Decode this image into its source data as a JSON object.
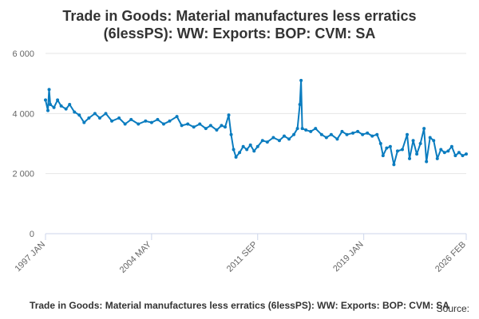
{
  "chart_data": {
    "type": "line",
    "title_line1": "Trade in Goods: Material manufactures less erratics",
    "title_line2": "(6lessPS): WW: Exports: BOP: CVM: SA",
    "xlabel": "",
    "ylabel": "",
    "ylim": [
      0,
      6000
    ],
    "yticks": [
      0,
      2000,
      4000,
      6000
    ],
    "ytick_labels": [
      "0",
      "2 000",
      "4 000",
      "6 000"
    ],
    "xtick_labels": [
      "1997 JAN",
      "2004 MAY",
      "2011 SEP",
      "2019 JAN",
      "2026 FEB"
    ],
    "xtick_dates": [
      "1997-01",
      "2004-05",
      "2011-09",
      "2019-01",
      "2026-02"
    ],
    "x_range": [
      "1997-01",
      "2026-02"
    ],
    "grid": true,
    "color": "#0a7cbf",
    "series": [
      {
        "name": "Trade in Goods: Material manufactures less erratics (6lessPS): WW: Exports: BOP: CVM: SA",
        "points": [
          [
            "1997-01",
            4450
          ],
          [
            "1997-03",
            4100
          ],
          [
            "1997-04",
            4800
          ],
          [
            "1997-05",
            4300
          ],
          [
            "1997-08",
            4200
          ],
          [
            "1997-11",
            4450
          ],
          [
            "1998-02",
            4250
          ],
          [
            "1998-06",
            4150
          ],
          [
            "1998-09",
            4300
          ],
          [
            "1999-01",
            4050
          ],
          [
            "1999-05",
            3950
          ],
          [
            "1999-09",
            3700
          ],
          [
            "2000-01",
            3850
          ],
          [
            "2000-06",
            4000
          ],
          [
            "2000-10",
            3850
          ],
          [
            "2001-03",
            4000
          ],
          [
            "2001-08",
            3750
          ],
          [
            "2002-02",
            3850
          ],
          [
            "2002-07",
            3650
          ],
          [
            "2002-12",
            3800
          ],
          [
            "2003-06",
            3650
          ],
          [
            "2003-12",
            3750
          ],
          [
            "2004-05",
            3700
          ],
          [
            "2004-10",
            3800
          ],
          [
            "2005-03",
            3650
          ],
          [
            "2005-08",
            3750
          ],
          [
            "2006-02",
            3900
          ],
          [
            "2006-06",
            3600
          ],
          [
            "2006-11",
            3650
          ],
          [
            "2007-04",
            3550
          ],
          [
            "2007-09",
            3650
          ],
          [
            "2008-02",
            3500
          ],
          [
            "2008-06",
            3600
          ],
          [
            "2008-11",
            3450
          ],
          [
            "2009-03",
            3600
          ],
          [
            "2009-06",
            3550
          ],
          [
            "2009-09",
            3950
          ],
          [
            "2009-11",
            3300
          ],
          [
            "2010-01",
            2800
          ],
          [
            "2010-03",
            2550
          ],
          [
            "2010-06",
            2700
          ],
          [
            "2010-09",
            2900
          ],
          [
            "2010-12",
            2800
          ],
          [
            "2011-03",
            2950
          ],
          [
            "2011-06",
            2750
          ],
          [
            "2011-09",
            2900
          ],
          [
            "2012-01",
            3100
          ],
          [
            "2012-05",
            3050
          ],
          [
            "2012-10",
            3200
          ],
          [
            "2013-03",
            3100
          ],
          [
            "2013-07",
            3250
          ],
          [
            "2013-11",
            3150
          ],
          [
            "2014-03",
            3300
          ],
          [
            "2014-06",
            3500
          ],
          [
            "2014-08",
            4300
          ],
          [
            "2014-09",
            5100
          ],
          [
            "2014-10",
            3500
          ],
          [
            "2015-01",
            3450
          ],
          [
            "2015-05",
            3400
          ],
          [
            "2015-09",
            3500
          ],
          [
            "2016-02",
            3300
          ],
          [
            "2016-06",
            3200
          ],
          [
            "2016-10",
            3300
          ],
          [
            "2017-03",
            3150
          ],
          [
            "2017-07",
            3400
          ],
          [
            "2017-11",
            3300
          ],
          [
            "2018-04",
            3350
          ],
          [
            "2018-08",
            3400
          ],
          [
            "2018-12",
            3300
          ],
          [
            "2019-04",
            3350
          ],
          [
            "2019-08",
            3250
          ],
          [
            "2019-12",
            3300
          ],
          [
            "2020-03",
            3000
          ],
          [
            "2020-05",
            2600
          ],
          [
            "2020-08",
            2850
          ],
          [
            "2020-11",
            2900
          ],
          [
            "2021-02",
            2300
          ],
          [
            "2021-05",
            2750
          ],
          [
            "2021-09",
            2800
          ],
          [
            "2022-01",
            3300
          ],
          [
            "2022-03",
            2500
          ],
          [
            "2022-06",
            3100
          ],
          [
            "2022-09",
            2650
          ],
          [
            "2022-12",
            3000
          ],
          [
            "2023-03",
            3500
          ],
          [
            "2023-05",
            2400
          ],
          [
            "2023-08",
            3200
          ],
          [
            "2023-11",
            3100
          ],
          [
            "2024-02",
            2500
          ],
          [
            "2024-05",
            2800
          ],
          [
            "2024-08",
            2700
          ],
          [
            "2024-11",
            2750
          ],
          [
            "2025-02",
            2900
          ],
          [
            "2025-05",
            2600
          ],
          [
            "2025-08",
            2700
          ],
          [
            "2025-11",
            2600
          ],
          [
            "2026-02",
            2650
          ]
        ]
      }
    ]
  },
  "legend_caption": "Trade in Goods: Material manufactures less erratics (6lessPS): WW: Exports: BOP: CVM: SA",
  "source_label": "Source:"
}
